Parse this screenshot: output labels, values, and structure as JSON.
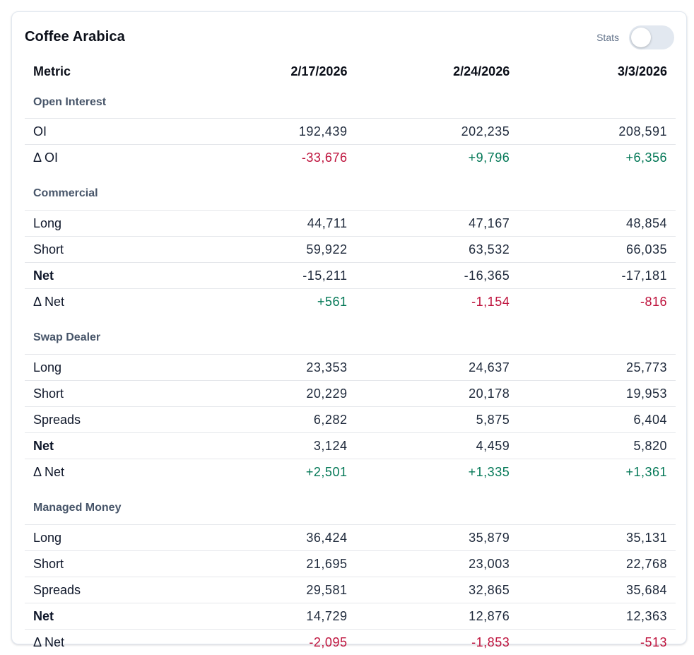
{
  "card": {
    "title": "Coffee Arabica",
    "stats_label": "Stats",
    "stats_toggle_on": false
  },
  "table": {
    "headers": [
      "Metric",
      "2/17/2026",
      "2/24/2026",
      "3/3/2026"
    ],
    "colors": {
      "positive": "#047857",
      "negative": "#be123c"
    },
    "sections": [
      {
        "name": "Open Interest",
        "rows": [
          {
            "label": "OI",
            "values": [
              "192,439",
              "202,235",
              "208,591"
            ]
          },
          {
            "label": "Δ OI",
            "values": [
              "-33,676",
              "+9,796",
              "+6,356"
            ]
          }
        ]
      },
      {
        "name": "Commercial",
        "rows": [
          {
            "label": "Long",
            "values": [
              "44,711",
              "47,167",
              "48,854"
            ]
          },
          {
            "label": "Short",
            "values": [
              "59,922",
              "63,532",
              "66,035"
            ]
          },
          {
            "label": "Net",
            "values": [
              "-15,211",
              "-16,365",
              "-17,181"
            ]
          },
          {
            "label": "Δ Net",
            "values": [
              "+561",
              "-1,154",
              "-816"
            ]
          }
        ]
      },
      {
        "name": "Swap Dealer",
        "rows": [
          {
            "label": "Long",
            "values": [
              "23,353",
              "24,637",
              "25,773"
            ]
          },
          {
            "label": "Short",
            "values": [
              "20,229",
              "20,178",
              "19,953"
            ]
          },
          {
            "label": "Spreads",
            "values": [
              "6,282",
              "5,875",
              "6,404"
            ]
          },
          {
            "label": "Net",
            "values": [
              "3,124",
              "4,459",
              "5,820"
            ]
          },
          {
            "label": "Δ Net",
            "values": [
              "+2,501",
              "+1,335",
              "+1,361"
            ]
          }
        ]
      },
      {
        "name": "Managed Money",
        "rows": [
          {
            "label": "Long",
            "values": [
              "36,424",
              "35,879",
              "35,131"
            ]
          },
          {
            "label": "Short",
            "values": [
              "21,695",
              "23,003",
              "22,768"
            ]
          },
          {
            "label": "Spreads",
            "values": [
              "29,581",
              "32,865",
              "35,684"
            ]
          },
          {
            "label": "Net",
            "values": [
              "14,729",
              "12,876",
              "12,363"
            ]
          },
          {
            "label": "Δ Net",
            "values": [
              "-2,095",
              "-1,853",
              "-513"
            ]
          }
        ]
      }
    ]
  }
}
